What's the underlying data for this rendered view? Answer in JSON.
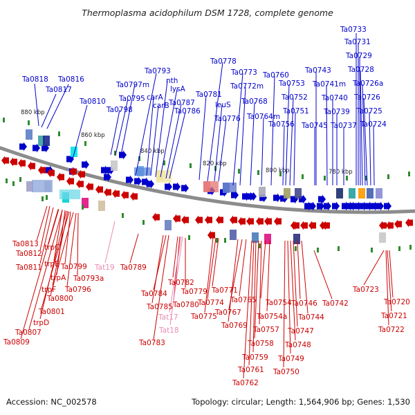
{
  "title": "Thermoplasma acidophilum DSM 1728, complete genome",
  "footer": {
    "accession": "Accession: NC_002578",
    "summary": "Topology: circular; Length: 1,564,906 bp; Genes: 1,530"
  },
  "scale_labels": [
    "880 kbp",
    "860 kbp",
    "840 kbp",
    "820 kbp",
    "800 kbp",
    "780 kbp"
  ],
  "colors": {
    "forward": "#0000cc",
    "reverse": "#cc0000",
    "rna": "#e98bb5",
    "backbone": "#8c8c8c",
    "marker": "#2e8b2e"
  },
  "forward_labels": [
    "Ta0733",
    "Ta0731",
    "Ta0729",
    "Ta0728",
    "Ta0726a",
    "Ta0726",
    "Ta0725",
    "Ta0724",
    "Ta0737",
    "Ta0739",
    "Ta0740",
    "Ta0741m",
    "Ta0743",
    "Ta0745",
    "Ta0751",
    "Ta0752",
    "Ta0753",
    "Ta0756",
    "Ta0760",
    "Ta0764m",
    "Ta0768",
    "Ta0772m",
    "Ta0773",
    "Ta0778",
    "leuS",
    "Ta0776",
    "Ta0781",
    "Ta0786",
    "Ta0787",
    "lysA",
    "nth",
    "carB",
    "carA",
    "Ta0793",
    "Ta0797m",
    "Ta0795",
    "Ta0798",
    "Ta0810",
    "Ta0816",
    "Ta0817",
    "Ta0818"
  ],
  "reverse_labels": [
    "Ta0813",
    "Ta0812",
    "Ta0811",
    "trpC",
    "trpE",
    "trpA",
    "trpF",
    "Ta0799",
    "Ta0793a",
    "Ta0796",
    "Ta0800",
    "Ta0801",
    "trpD",
    "Ta0807",
    "Ta0809",
    "Ta0789",
    "Ta0782",
    "Ta0784",
    "Ta0785",
    "Ta0780",
    "Ta0779",
    "Ta0783",
    "Ta0771",
    "Ta0774",
    "Ta0775",
    "Ta0765",
    "Ta0767",
    "Ta0769",
    "Ta0754",
    "Ta0754a",
    "Ta0757",
    "Ta0758",
    "Ta0759",
    "Ta0761",
    "Ta0762",
    "Ta0746",
    "Ta0744",
    "Ta0747",
    "Ta0748",
    "Ta0749",
    "Ta0750",
    "Ta0742",
    "Ta0723",
    "Ta0720",
    "Ta0721",
    "Ta0722"
  ],
  "rna_labels": [
    "Tat19",
    "Tat17",
    "Tat18"
  ]
}
